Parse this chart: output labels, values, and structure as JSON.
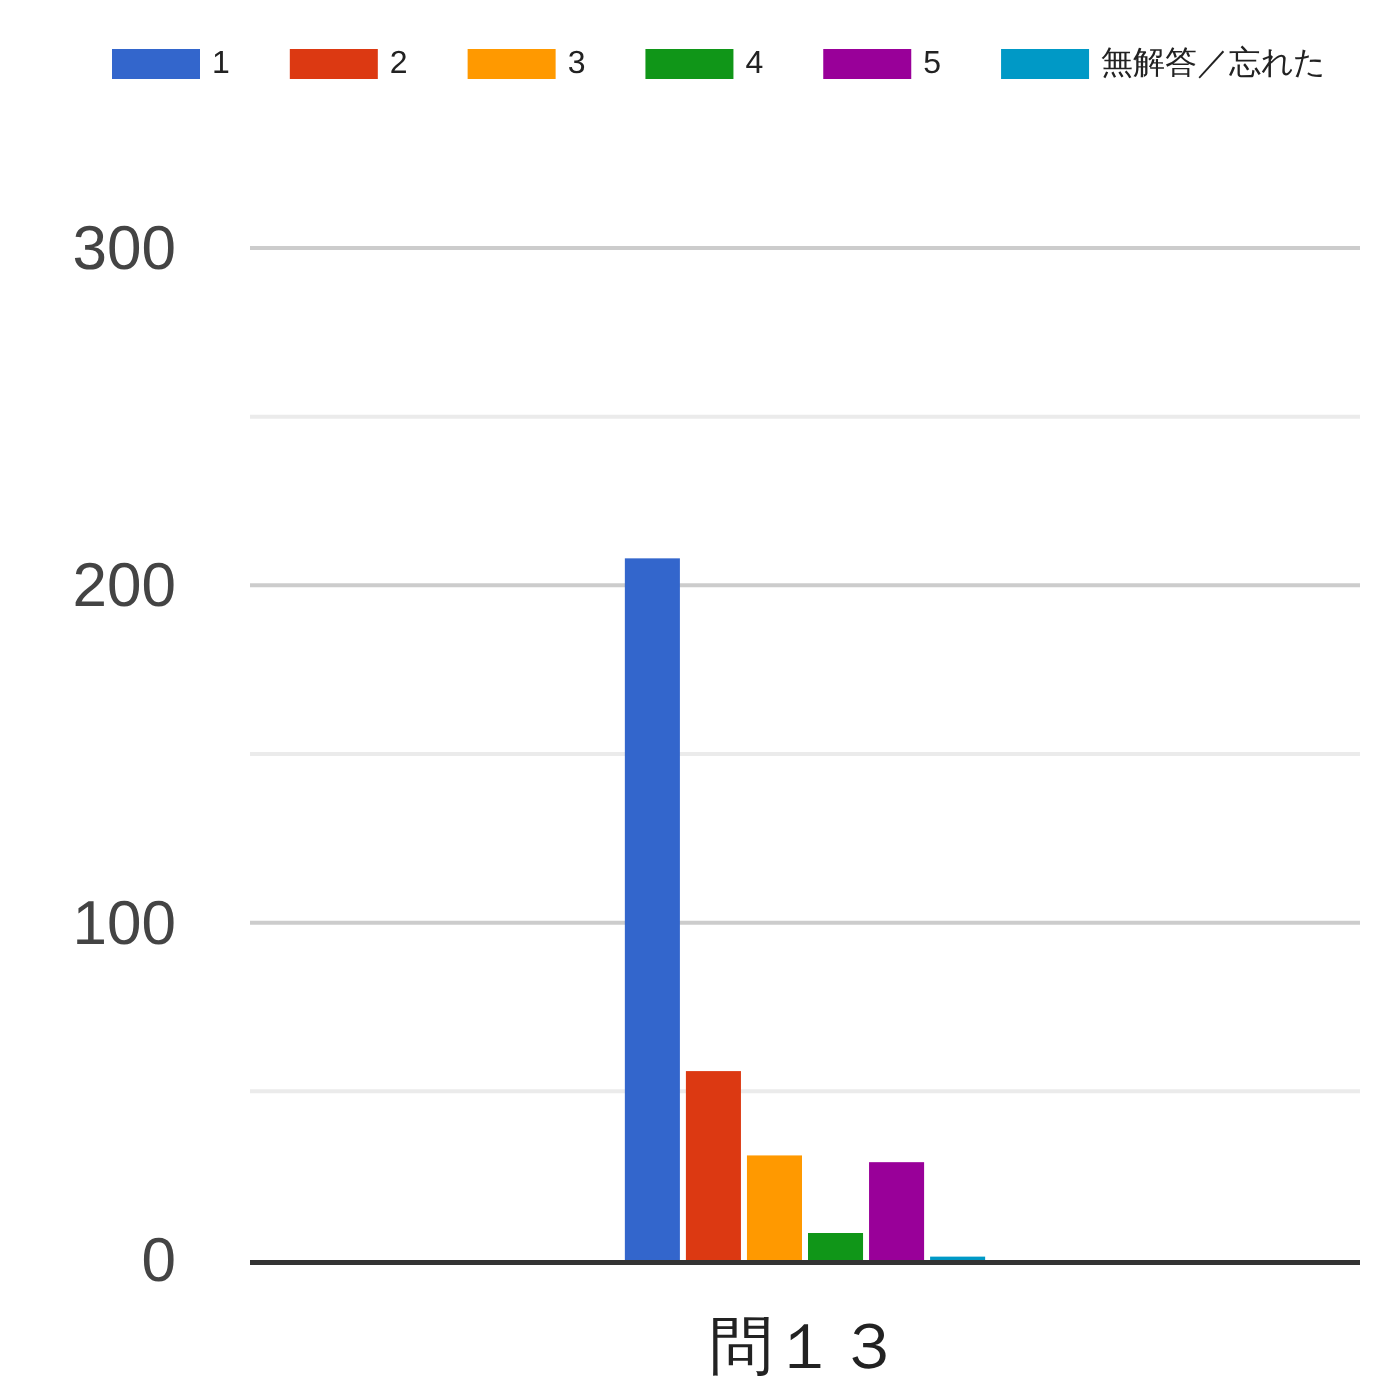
{
  "chart_data": {
    "type": "bar",
    "categories": [
      "問１３"
    ],
    "series": [
      {
        "name": "1",
        "color": "#3366cc",
        "values": [
          208
        ]
      },
      {
        "name": "2",
        "color": "#dc3912",
        "values": [
          56
        ]
      },
      {
        "name": "3",
        "color": "#ff9900",
        "values": [
          31
        ]
      },
      {
        "name": "4",
        "color": "#109618",
        "values": [
          8
        ]
      },
      {
        "name": "5",
        "color": "#990099",
        "values": [
          29
        ]
      },
      {
        "name": "無解答／忘れた",
        "color": "#0099c6",
        "values": [
          1
        ]
      }
    ],
    "ylim": [
      0,
      300
    ],
    "yticks": [
      0,
      {
        "value": 50,
        "label": null
      },
      100,
      {
        "value": 150,
        "label": null
      },
      200,
      {
        "value": 250,
        "label": null
      },
      300
    ],
    "grid": "y",
    "legend": "top"
  }
}
